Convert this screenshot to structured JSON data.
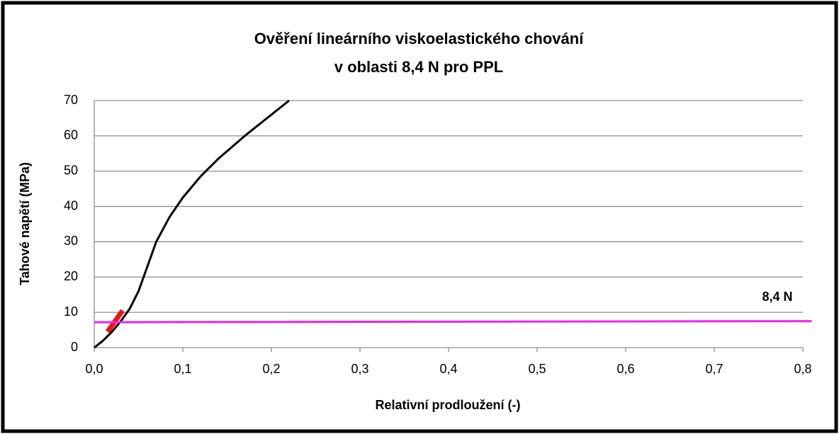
{
  "chart_data": {
    "type": "line",
    "title": [
      "Ověření lineárního viskoelastického chování",
      "v oblasti 8,4 N pro PPL"
    ],
    "x_label": "Relativní prodloužení (-)",
    "y_label": "Tahové napětí (MPa)",
    "annotation": "8,4 N",
    "xlim": [
      0,
      0.8
    ],
    "ylim": [
      0,
      70
    ],
    "xticks": [
      {
        "value": 0,
        "label": "0,0"
      },
      {
        "value": 0.1,
        "label": "0,1"
      },
      {
        "value": 0.2,
        "label": "0,2"
      },
      {
        "value": 0.3,
        "label": "0,3"
      },
      {
        "value": 0.4,
        "label": "0,4"
      },
      {
        "value": 0.5,
        "label": "0,5"
      },
      {
        "value": 0.6,
        "label": "0,6"
      },
      {
        "value": 0.7,
        "label": "0,7"
      },
      {
        "value": 0.8,
        "label": "0,8"
      }
    ],
    "yticks": [
      0,
      10,
      20,
      30,
      40,
      50,
      60,
      70
    ],
    "grid": true,
    "series": [
      {
        "color": "#000000",
        "width": 3,
        "x": [
          0,
          0.01,
          0.02,
          0.03,
          0.04,
          0.05,
          0.06,
          0.07,
          0.085,
          0.1,
          0.12,
          0.14,
          0.17,
          0.2,
          0.22
        ],
        "values": [
          0,
          2,
          4.5,
          7.5,
          11,
          16,
          23,
          30,
          37,
          42.5,
          48.5,
          53.5,
          60,
          66,
          70
        ]
      },
      {
        "color": "#ee1111",
        "width": 7,
        "x": [
          0.015,
          0.032
        ],
        "values": [
          4.5,
          10.5
        ]
      },
      {
        "color": "#ee22ee",
        "width": 3,
        "x": [
          0,
          0.81
        ],
        "values": [
          7.2,
          7.5
        ]
      }
    ]
  }
}
